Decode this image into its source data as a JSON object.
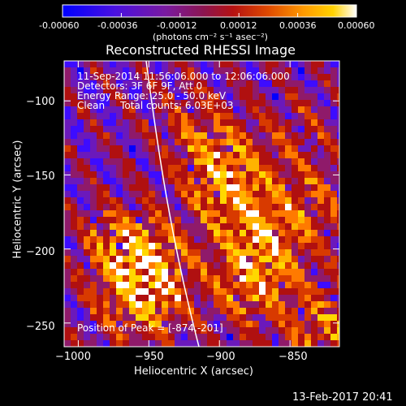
{
  "colorbar": {
    "tick_labels": [
      "-0.00060",
      "-0.00036",
      "-0.00012",
      "0.00012",
      "0.00036",
      "0.00060"
    ],
    "units_label": "(photons cm⁻² s⁻¹ asec⁻²)",
    "colors": [
      "#0000ff",
      "#3d0cff",
      "#6b19bb",
      "#8f1a6a",
      "#b01010",
      "#d83a00",
      "#ff7a00",
      "#ffb300",
      "#ffd800",
      "#ffffff"
    ]
  },
  "image": {
    "title": "Reconstructed RHESSI Image",
    "info_lines": [
      "11-Sep-2014 11:56:06.000 to 12:06:06.000",
      "Detectors: 3F 6F 9F, Att 0",
      "Energy Range: 25.0 - 50.0 keV",
      "Clean     Total counts: 6.03E+03"
    ],
    "peak_label": "Position of Peak = [-874,-201]",
    "x_axis": {
      "label": "Heliocentric X (arcsec)",
      "range": [
        -1010,
        -815
      ],
      "ticks": [
        -1000,
        -950,
        -900,
        -850
      ],
      "tick_labels": [
        "−1000",
        "−950",
        "−900",
        "−850"
      ]
    },
    "y_axis": {
      "label": "Heliocentric Y (arcsec)",
      "range": [
        -266,
        -73
      ],
      "ticks": [
        -100,
        -150,
        -200,
        -250
      ],
      "tick_labels": [
        "−100",
        "−150",
        "−200",
        "−250"
      ]
    }
  },
  "footer_date": "13-Feb-2017 20:41"
}
